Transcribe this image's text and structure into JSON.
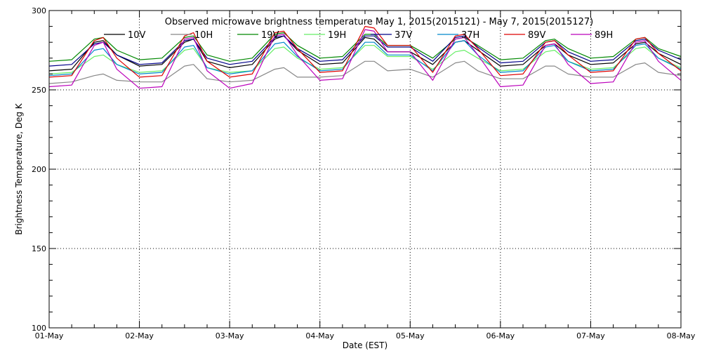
{
  "chart_data": {
    "type": "line",
    "title": "Observed microwave brightness temperature May  1, 2015(2015121) - May  7, 2015(2015127)",
    "xlabel": "Date (EST)",
    "ylabel": "Brightness Temperature, Deg K",
    "ylim": [
      100,
      300
    ],
    "yticks": [
      100,
      150,
      200,
      250,
      300
    ],
    "xlim": [
      0,
      7
    ],
    "xtick_labels": [
      "01-May",
      "02-May",
      "03-May",
      "04-May",
      "05-May",
      "06-May",
      "07-May",
      "08-May"
    ],
    "grid": true,
    "legend_position": "top",
    "x_unit_note": "x values are days from 01-May 00:00 EST",
    "series": [
      {
        "name": "10V",
        "color": "#000000",
        "x": [
          0,
          0.25,
          0.5,
          0.6,
          0.75,
          1,
          1.25,
          1.5,
          1.6,
          1.75,
          2,
          2.25,
          2.5,
          2.6,
          2.75,
          3,
          3.25,
          3.5,
          3.6,
          3.75,
          4,
          4.25,
          4.5,
          4.6,
          4.75,
          5,
          5.25,
          5.5,
          5.6,
          5.75,
          6,
          6.25,
          6.5,
          6.6,
          6.75,
          7
        ],
        "y": [
          262,
          263,
          280,
          281,
          272,
          265,
          266,
          280,
          282,
          268,
          264,
          266,
          282,
          284,
          275,
          266,
          267,
          283,
          282,
          274,
          274,
          266,
          280,
          281,
          275,
          265,
          266,
          278,
          279,
          272,
          266,
          267,
          279,
          280,
          273,
          266
        ]
      },
      {
        "name": "10H",
        "color": "#888888",
        "x": [
          0,
          0.25,
          0.5,
          0.6,
          0.75,
          1,
          1.25,
          1.5,
          1.6,
          1.75,
          2,
          2.25,
          2.5,
          2.6,
          2.75,
          3,
          3.25,
          3.5,
          3.6,
          3.75,
          4,
          4.25,
          4.5,
          4.6,
          4.75,
          5,
          5.25,
          5.5,
          5.6,
          5.75,
          6,
          6.25,
          6.5,
          6.6,
          6.75,
          7
        ],
        "y": [
          254,
          255,
          259,
          260,
          256,
          255,
          255,
          265,
          266,
          257,
          255,
          256,
          263,
          264,
          258,
          258,
          259,
          268,
          268,
          262,
          263,
          258,
          267,
          268,
          262,
          257,
          257,
          265,
          265,
          260,
          258,
          258,
          266,
          267,
          261,
          259
        ]
      },
      {
        "name": "19V",
        "color": "#008800",
        "x": [
          0,
          0.25,
          0.5,
          0.6,
          0.75,
          1,
          1.25,
          1.5,
          1.6,
          1.75,
          2,
          2.25,
          2.5,
          2.6,
          2.75,
          3,
          3.25,
          3.5,
          3.6,
          3.75,
          4,
          4.25,
          4.5,
          4.6,
          4.75,
          5,
          5.25,
          5.5,
          5.6,
          5.75,
          6,
          6.25,
          6.5,
          6.6,
          6.75,
          7
        ],
        "y": [
          268,
          269,
          282,
          283,
          275,
          269,
          270,
          283,
          284,
          272,
          268,
          270,
          285,
          286,
          278,
          270,
          271,
          285,
          285,
          278,
          278,
          270,
          282,
          283,
          278,
          269,
          270,
          281,
          282,
          276,
          270,
          271,
          282,
          283,
          276,
          271
        ]
      },
      {
        "name": "19H",
        "color": "#66ee66",
        "x": [
          0,
          0.25,
          0.5,
          0.6,
          0.75,
          1,
          1.25,
          1.5,
          1.6,
          1.75,
          2,
          2.25,
          2.5,
          2.6,
          2.75,
          3,
          3.25,
          3.5,
          3.6,
          3.75,
          4,
          4.25,
          4.5,
          4.6,
          4.75,
          5,
          5.25,
          5.5,
          5.6,
          5.75,
          6,
          6.25,
          6.5,
          6.6,
          6.75,
          7
        ],
        "y": [
          260,
          261,
          271,
          272,
          266,
          261,
          262,
          275,
          276,
          264,
          261,
          262,
          276,
          277,
          270,
          263,
          264,
          278,
          278,
          271,
          271,
          263,
          274,
          275,
          270,
          262,
          263,
          274,
          275,
          268,
          263,
          264,
          276,
          277,
          270,
          264
        ]
      },
      {
        "name": "37V",
        "color": "#000088",
        "x": [
          0,
          0.25,
          0.5,
          0.6,
          0.75,
          1,
          1.25,
          1.5,
          1.6,
          1.75,
          2,
          2.25,
          2.5,
          2.6,
          2.75,
          3,
          3.25,
          3.5,
          3.6,
          3.75,
          4,
          4.25,
          4.5,
          4.6,
          4.75,
          5,
          5.25,
          5.5,
          5.6,
          5.75,
          6,
          6.25,
          6.5,
          6.6,
          6.75,
          7
        ],
        "y": [
          265,
          266,
          279,
          280,
          272,
          266,
          267,
          281,
          282,
          270,
          266,
          268,
          283,
          284,
          276,
          268,
          269,
          284,
          284,
          277,
          277,
          268,
          283,
          284,
          277,
          267,
          268,
          280,
          281,
          274,
          268,
          269,
          281,
          282,
          275,
          269
        ]
      },
      {
        "name": "37H",
        "color": "#0088cc",
        "x": [
          0,
          0.25,
          0.5,
          0.6,
          0.75,
          1,
          1.25,
          1.5,
          1.6,
          1.75,
          2,
          2.25,
          2.5,
          2.6,
          2.75,
          3,
          3.25,
          3.5,
          3.6,
          3.75,
          4,
          4.25,
          4.5,
          4.6,
          4.75,
          5,
          5.25,
          5.5,
          5.6,
          5.75,
          6,
          6.25,
          6.5,
          6.6,
          6.75,
          7
        ],
        "y": [
          259,
          260,
          275,
          276,
          266,
          260,
          261,
          277,
          278,
          264,
          260,
          262,
          279,
          280,
          271,
          262,
          263,
          280,
          280,
          272,
          272,
          262,
          280,
          281,
          272,
          261,
          262,
          277,
          278,
          268,
          262,
          263,
          278,
          279,
          270,
          263
        ]
      },
      {
        "name": "89V",
        "color": "#dd0000",
        "x": [
          0,
          0.25,
          0.5,
          0.6,
          0.75,
          1,
          1.25,
          1.5,
          1.6,
          1.75,
          2,
          2.25,
          2.5,
          2.6,
          2.75,
          3,
          3.25,
          3.5,
          3.6,
          3.75,
          4,
          4.25,
          4.5,
          4.6,
          4.75,
          5,
          5.25,
          5.5,
          5.6,
          5.75,
          6,
          6.25,
          6.5,
          6.6,
          6.75,
          7
        ],
        "y": [
          258,
          259,
          281,
          283,
          270,
          258,
          259,
          284,
          286,
          268,
          258,
          260,
          286,
          287,
          276,
          261,
          262,
          290,
          289,
          278,
          278,
          261,
          284,
          285,
          276,
          259,
          260,
          280,
          281,
          272,
          261,
          262,
          282,
          283,
          273,
          262
        ]
      },
      {
        "name": "89H",
        "color": "#bb00bb",
        "x": [
          0,
          0.25,
          0.5,
          0.6,
          0.75,
          1,
          1.25,
          1.5,
          1.6,
          1.75,
          2,
          2.25,
          2.5,
          2.6,
          2.75,
          3,
          3.25,
          3.5,
          3.6,
          3.75,
          4,
          4.25,
          4.5,
          4.6,
          4.75,
          5,
          5.25,
          5.5,
          5.6,
          5.75,
          6,
          6.25,
          6.5,
          6.6,
          6.75,
          7
        ],
        "y": [
          252,
          253,
          278,
          280,
          263,
          251,
          252,
          282,
          283,
          262,
          251,
          254,
          284,
          285,
          272,
          256,
          257,
          288,
          287,
          274,
          274,
          256,
          282,
          283,
          272,
          252,
          253,
          278,
          279,
          266,
          254,
          255,
          280,
          281,
          268,
          256
        ]
      }
    ]
  }
}
